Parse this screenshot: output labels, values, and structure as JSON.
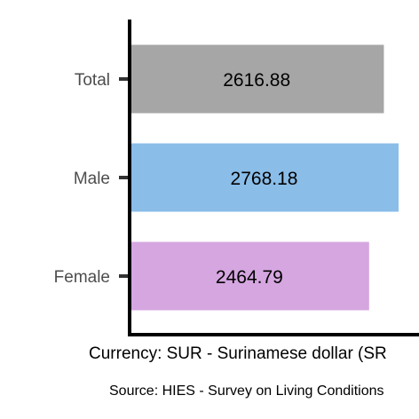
{
  "chart_data": {
    "type": "bar",
    "orientation": "horizontal",
    "categories": [
      "Total",
      "Male",
      "Female"
    ],
    "values": [
      2616.88,
      2768.18,
      2464.79
    ],
    "value_labels": [
      "2616.88",
      "2768.18",
      "2464.79"
    ],
    "colors": [
      "#a6a6a6",
      "#8abde8",
      "#d5a6e0"
    ],
    "xlabel": "Currency: SUR - Surinamese dollar (SR",
    "caption": "Source:  HIES - Survey on Living Conditions",
    "xlim": [
      0,
      2768.18
    ],
    "grid": false,
    "legend": "none"
  }
}
